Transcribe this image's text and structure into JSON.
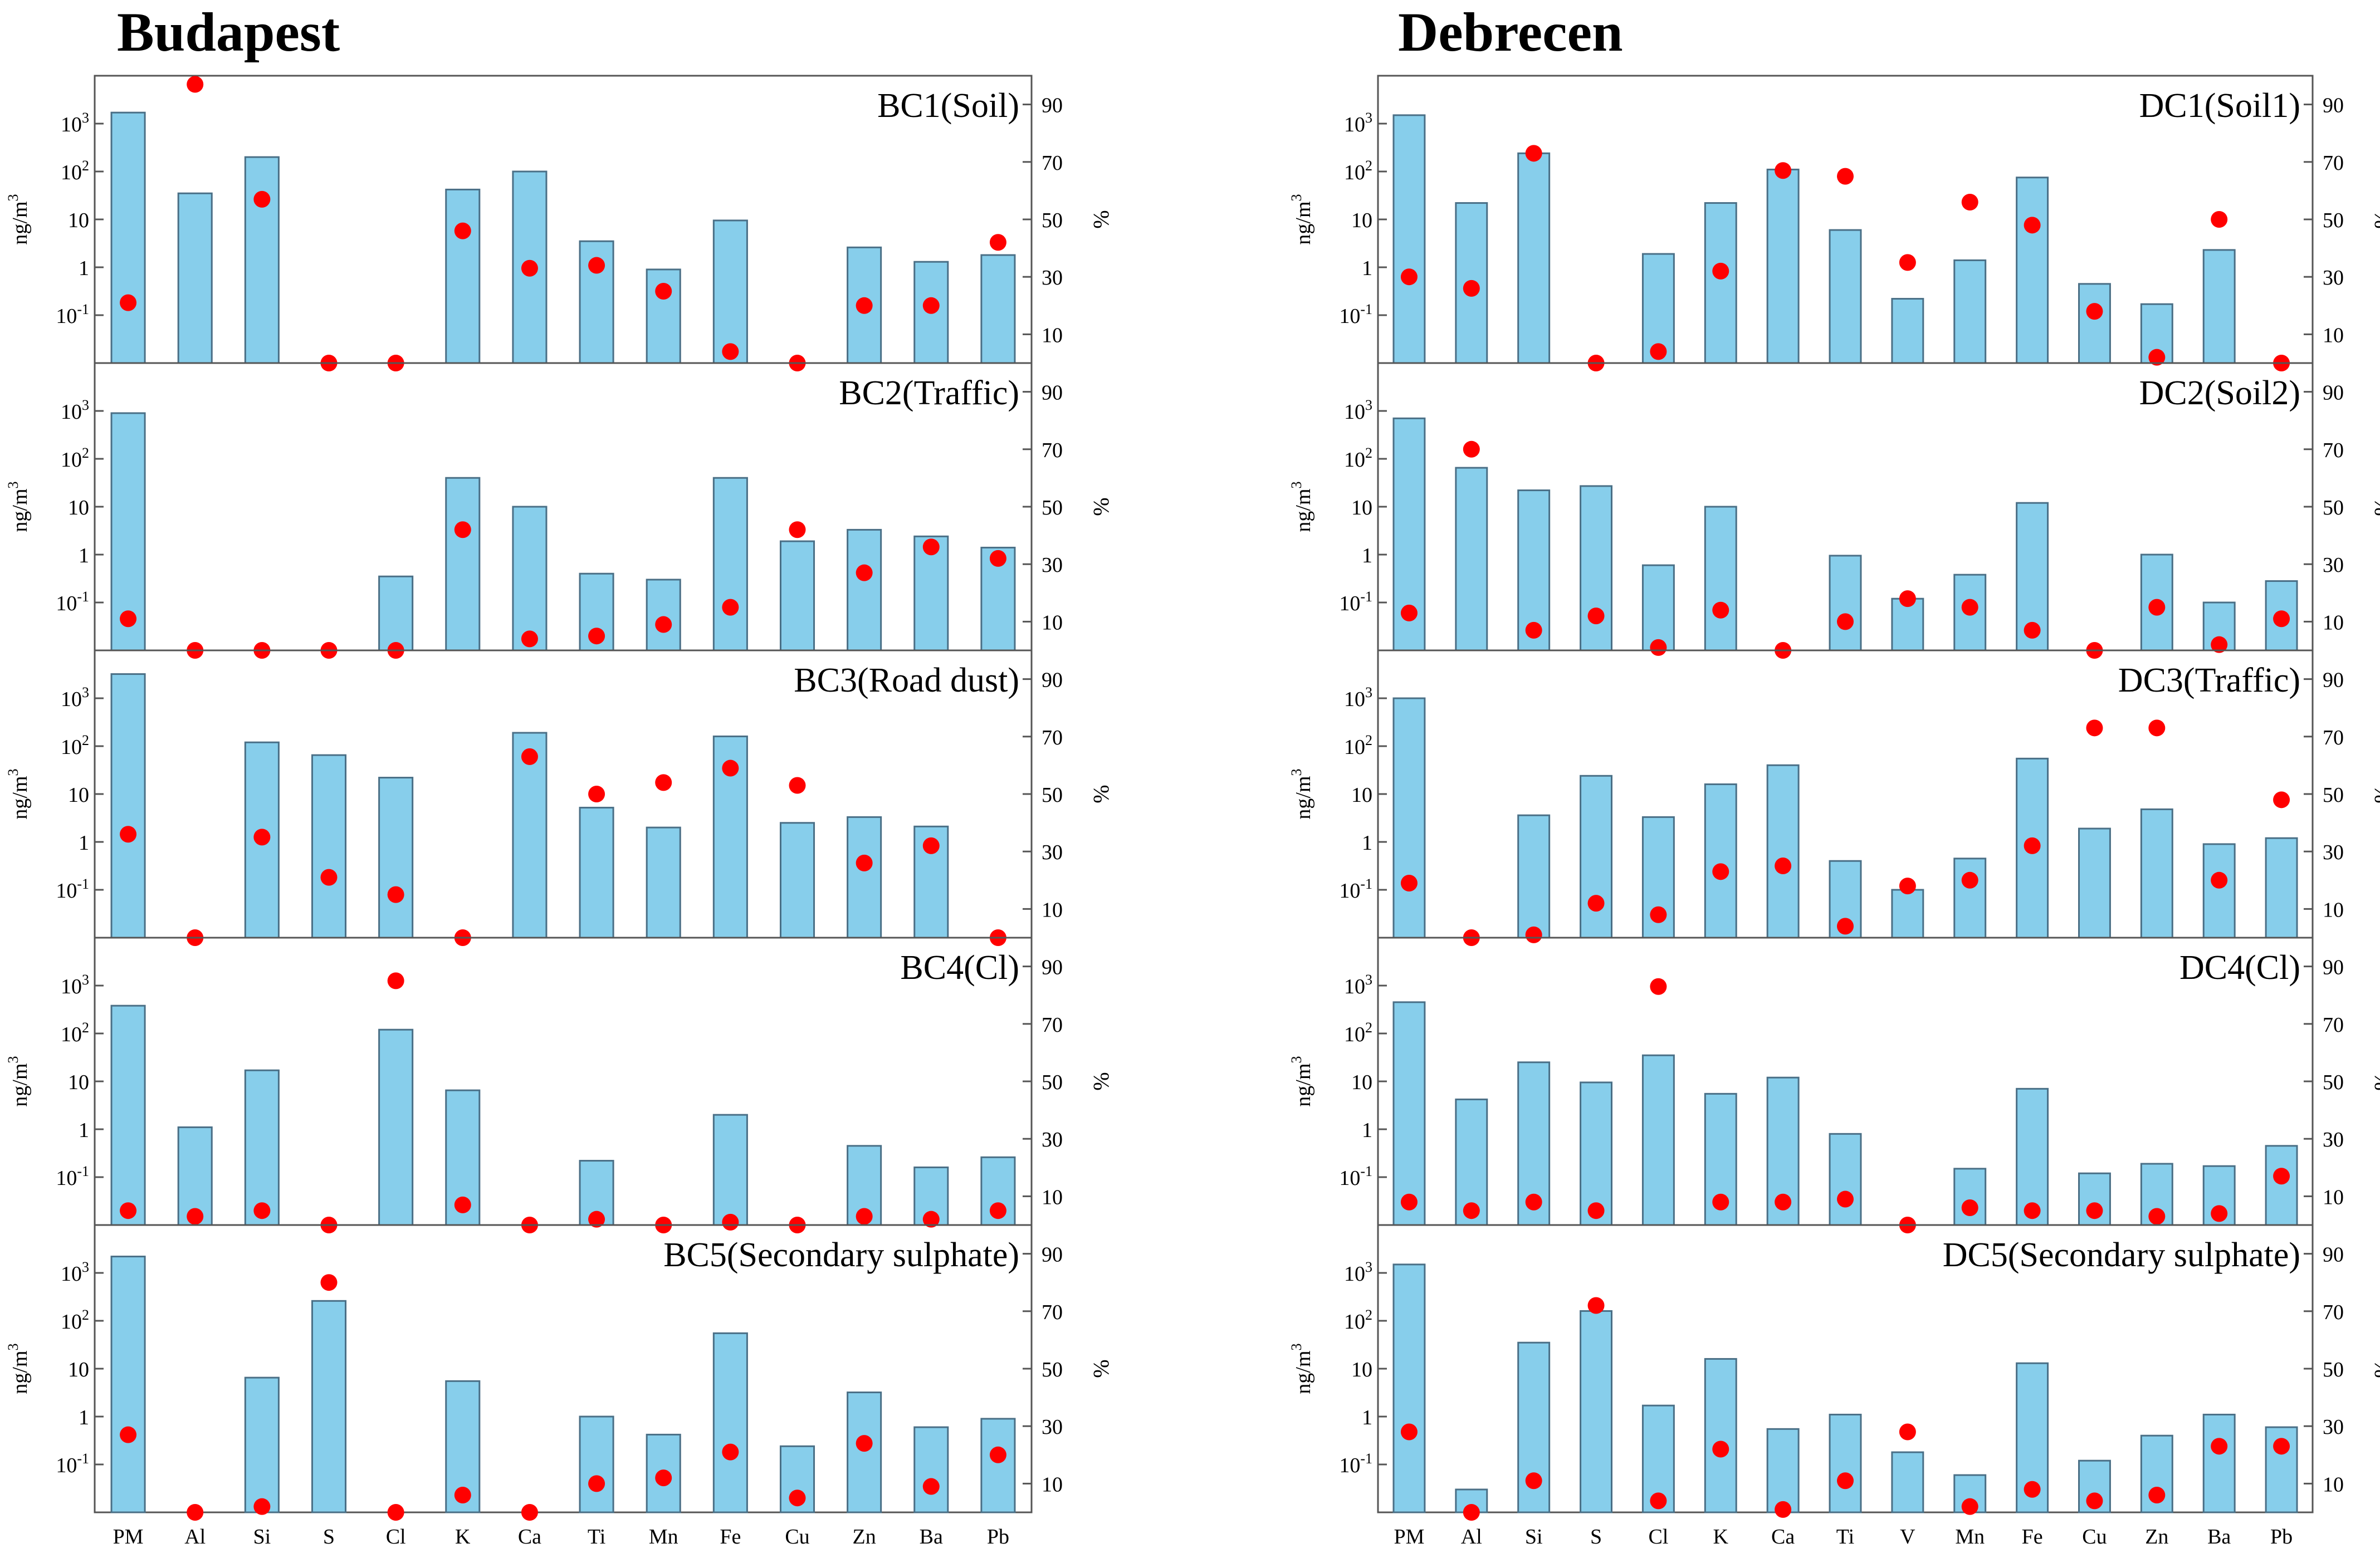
{
  "figure": {
    "cities": [
      "Budapest",
      "Debrecen"
    ],
    "left_axis_label": "ng/m",
    "left_axis_label_sup": "3",
    "right_axis_label": "%",
    "left_ticks": [
      {
        "value": 0.1,
        "base": "10",
        "sup": "-1"
      },
      {
        "value": 1,
        "base": "1",
        "sup": ""
      },
      {
        "value": 10,
        "base": "10",
        "sup": ""
      },
      {
        "value": 100,
        "base": "10",
        "sup": "2"
      },
      {
        "value": 1000,
        "base": "10",
        "sup": "3"
      }
    ],
    "right_ticks": [
      10,
      30,
      50,
      70,
      90
    ],
    "colors": {
      "bar": "#87CEEB",
      "bar_edge": "#4a6f86",
      "dot": "#ff0000",
      "axis": "#555555"
    }
  },
  "chart_data": [
    {
      "type": "bar",
      "city": "Budapest",
      "title": "BC1(Soil)",
      "categories": [
        "PM",
        "Al",
        "Si",
        "S",
        "Cl",
        "K",
        "Ca",
        "Ti",
        "Mn",
        "Fe",
        "Cu",
        "Zn",
        "Ba",
        "Pb"
      ],
      "values": [
        1700,
        35,
        200,
        0,
        0,
        42,
        100,
        3.5,
        0.9,
        9.5,
        0,
        2.6,
        1.3,
        1.8
      ],
      "percent": [
        21,
        97,
        57,
        0,
        0,
        46,
        33,
        34,
        25,
        4,
        0,
        20,
        20,
        42
      ],
      "ylabel": "ng/m3",
      "y2label": "%",
      "ylim": [
        0.01,
        10000
      ],
      "y2lim": [
        0,
        100
      ],
      "yscale": "log"
    },
    {
      "type": "bar",
      "city": "Budapest",
      "title": "BC2(Traffic)",
      "categories": [
        "PM",
        "Al",
        "Si",
        "S",
        "Cl",
        "K",
        "Ca",
        "Ti",
        "Mn",
        "Fe",
        "Cu",
        "Zn",
        "Ba",
        "Pb"
      ],
      "values": [
        900,
        0,
        0,
        0,
        0.35,
        40,
        10,
        0.4,
        0.3,
        40,
        1.9,
        3.3,
        2.4,
        1.4
      ],
      "percent": [
        11,
        0,
        0,
        0,
        0,
        42,
        4,
        5,
        9,
        15,
        42,
        27,
        36,
        32
      ],
      "ylabel": "ng/m3",
      "y2label": "%",
      "ylim": [
        0.01,
        10000
      ],
      "y2lim": [
        0,
        100
      ],
      "yscale": "log"
    },
    {
      "type": "bar",
      "city": "Budapest",
      "title": "BC3(Road dust)",
      "categories": [
        "PM",
        "Al",
        "Si",
        "S",
        "Cl",
        "K",
        "Ca",
        "Ti",
        "Mn",
        "Fe",
        "Cu",
        "Zn",
        "Ba",
        "Pb"
      ],
      "values": [
        3200,
        0,
        120,
        65,
        22,
        0,
        190,
        5.2,
        2,
        160,
        2.5,
        3.3,
        2.1,
        0
      ],
      "percent": [
        36,
        0,
        35,
        21,
        15,
        0,
        63,
        50,
        54,
        59,
        53,
        26,
        32,
        0
      ],
      "ylabel": "ng/m3",
      "y2label": "%",
      "ylim": [
        0.01,
        10000
      ],
      "y2lim": [
        0,
        100
      ],
      "yscale": "log"
    },
    {
      "type": "bar",
      "city": "Budapest",
      "title": "BC4(Cl)",
      "categories": [
        "PM",
        "Al",
        "Si",
        "S",
        "Cl",
        "K",
        "Ca",
        "Ti",
        "Mn",
        "Fe",
        "Cu",
        "Zn",
        "Ba",
        "Pb"
      ],
      "values": [
        380,
        1.1,
        17,
        0,
        120,
        6.5,
        0,
        0.22,
        0,
        2,
        0,
        0.45,
        0.16,
        0.26
      ],
      "percent": [
        5,
        3,
        5,
        0,
        85,
        7,
        0,
        2,
        0,
        1,
        0,
        3,
        2,
        5
      ],
      "ylabel": "ng/m3",
      "y2label": "%",
      "ylim": [
        0.01,
        10000
      ],
      "y2lim": [
        0,
        100
      ],
      "yscale": "log"
    },
    {
      "type": "bar",
      "city": "Budapest",
      "title": "BC5(Secondary sulphate)",
      "categories": [
        "PM",
        "Al",
        "Si",
        "S",
        "Cl",
        "K",
        "Ca",
        "Ti",
        "Mn",
        "Fe",
        "Cu",
        "Zn",
        "Ba",
        "Pb"
      ],
      "values": [
        2200,
        0,
        6.5,
        260,
        0,
        5.5,
        0,
        1,
        0.42,
        55,
        0.24,
        3.2,
        0.6,
        0.9
      ],
      "percent": [
        27,
        0,
        2,
        80,
        0,
        6,
        0,
        10,
        12,
        21,
        5,
        24,
        9,
        20
      ],
      "ylabel": "ng/m3",
      "y2label": "%",
      "ylim": [
        0.01,
        10000
      ],
      "y2lim": [
        0,
        100
      ],
      "yscale": "log"
    },
    {
      "type": "bar",
      "city": "Debrecen",
      "title": "DC1(Soil1)",
      "categories": [
        "PM",
        "Al",
        "Si",
        "S",
        "Cl",
        "K",
        "Ca",
        "Ti",
        "V",
        "Mn",
        "Fe",
        "Cu",
        "Zn",
        "Ba",
        "Pb"
      ],
      "values": [
        1500,
        22,
        240,
        0,
        1.9,
        22,
        110,
        6,
        0.22,
        1.4,
        75,
        0.45,
        0.17,
        2.3,
        0
      ],
      "percent": [
        30,
        26,
        73,
        0,
        4,
        32,
        67,
        65,
        35,
        56,
        48,
        18,
        2,
        50,
        0
      ],
      "ylabel": "ng/m3",
      "y2label": "%",
      "ylim": [
        0.01,
        10000
      ],
      "y2lim": [
        0,
        100
      ],
      "yscale": "log"
    },
    {
      "type": "bar",
      "city": "Debrecen",
      "title": "DC2(Soil2)",
      "categories": [
        "PM",
        "Al",
        "Si",
        "S",
        "Cl",
        "K",
        "Ca",
        "Ti",
        "V",
        "Mn",
        "Fe",
        "Cu",
        "Zn",
        "Ba",
        "Pb"
      ],
      "values": [
        700,
        65,
        22,
        27,
        0.6,
        10,
        0,
        0.95,
        0.12,
        0.38,
        12,
        0,
        1,
        0.1,
        0.28
      ],
      "percent": [
        13,
        70,
        7,
        12,
        1,
        14,
        0,
        10,
        18,
        15,
        7,
        0,
        15,
        2,
        11
      ],
      "ylabel": "ng/m3",
      "y2label": "%",
      "ylim": [
        0.01,
        10000
      ],
      "y2lim": [
        0,
        100
      ],
      "yscale": "log"
    },
    {
      "type": "bar",
      "city": "Debrecen",
      "title": "DC3(Traffic)",
      "categories": [
        "PM",
        "Al",
        "Si",
        "S",
        "Cl",
        "K",
        "Ca",
        "Ti",
        "V",
        "Mn",
        "Fe",
        "Cu",
        "Zn",
        "Ba",
        "Pb"
      ],
      "values": [
        1000,
        0,
        3.6,
        24,
        3.3,
        16,
        40,
        0.4,
        0.1,
        0.45,
        55,
        1.9,
        4.8,
        0.9,
        1.2
      ],
      "percent": [
        19,
        0,
        1,
        12,
        8,
        23,
        25,
        4,
        18,
        20,
        32,
        73,
        73,
        20,
        48
      ],
      "ylabel": "ng/m3",
      "y2label": "%",
      "ylim": [
        0.01,
        10000
      ],
      "y2lim": [
        0,
        100
      ],
      "yscale": "log"
    },
    {
      "type": "bar",
      "city": "Debrecen",
      "title": "DC4(Cl)",
      "categories": [
        "PM",
        "Al",
        "Si",
        "S",
        "Cl",
        "K",
        "Ca",
        "Ti",
        "V",
        "Mn",
        "Fe",
        "Cu",
        "Zn",
        "Ba",
        "Pb"
      ],
      "values": [
        450,
        4.2,
        25,
        9.5,
        35,
        5.5,
        12,
        0.8,
        0,
        0.15,
        7,
        0.12,
        0.19,
        0.17,
        0.45
      ],
      "percent": [
        8,
        5,
        8,
        5,
        83,
        8,
        8,
        9,
        0,
        6,
        5,
        5,
        3,
        4,
        17
      ],
      "ylabel": "ng/m3",
      "y2label": "%",
      "ylim": [
        0.01,
        10000
      ],
      "y2lim": [
        0,
        100
      ],
      "yscale": "log"
    },
    {
      "type": "bar",
      "city": "Debrecen",
      "title": "DC5(Secondary sulphate)",
      "categories": [
        "PM",
        "Al",
        "Si",
        "S",
        "Cl",
        "K",
        "Ca",
        "Ti",
        "V",
        "Mn",
        "Fe",
        "Cu",
        "Zn",
        "Ba",
        "Pb"
      ],
      "values": [
        1500,
        0.03,
        35,
        160,
        1.7,
        16,
        0.55,
        1.1,
        0.18,
        0.06,
        13,
        0.12,
        0.4,
        1.1,
        0.6
      ],
      "percent": [
        28,
        0,
        11,
        72,
        4,
        22,
        1,
        11,
        28,
        2,
        8,
        4,
        6,
        23,
        23
      ],
      "ylabel": "ng/m3",
      "y2label": "%",
      "ylim": [
        0.01,
        10000
      ],
      "y2lim": [
        0,
        100
      ],
      "yscale": "log"
    }
  ]
}
